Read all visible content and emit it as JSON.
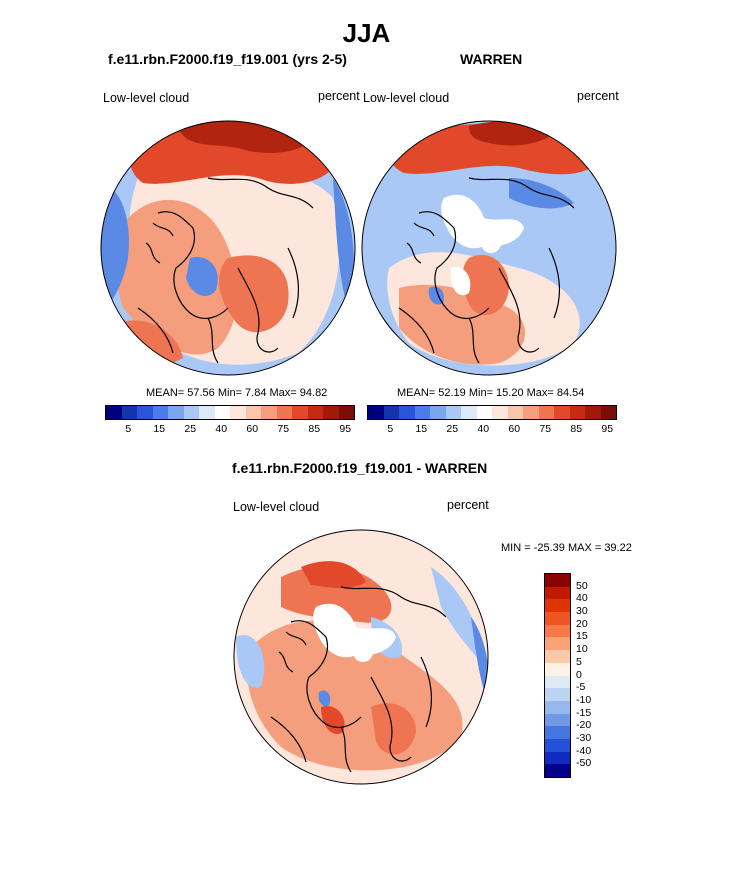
{
  "header": {
    "title": "JJA"
  },
  "panel_left": {
    "case_title": "f.e11.rbn.F2000.f19_f19.001 (yrs 2-5)",
    "variable": "Low-level cloud",
    "units": "percent",
    "stats": "MEAN=  57.56  Min=   7.84  Max=  94.82"
  },
  "panel_right": {
    "case_title": "WARREN",
    "variable": "Low-level cloud",
    "units": "percent",
    "stats": "MEAN=  52.19  Min=  15.20  Max=  84.54"
  },
  "panel_diff": {
    "case_title": "f.e11.rbn.F2000.f19_f19.001 - WARREN",
    "variable": "Low-level cloud",
    "units": "percent",
    "minmax": "MIN = -25.39 MAX =  39.22"
  },
  "colorbar_abs": {
    "colors": [
      "#00007f",
      "#1434ad",
      "#2a56d6",
      "#4a7de8",
      "#7aa5ef",
      "#a9c8f5",
      "#dbe9fa",
      "#ffffff",
      "#fde6dc",
      "#fbc5ab",
      "#f59e7e",
      "#ef7552",
      "#e2492b",
      "#c52a12",
      "#9e1b0a",
      "#7a0e05"
    ],
    "tick_labels": [
      "5",
      "15",
      "25",
      "40",
      "60",
      "75",
      "85",
      "95"
    ],
    "tick_boundaries": [
      1,
      3,
      5,
      7,
      9,
      11,
      13,
      15
    ]
  },
  "colorbar_diff": {
    "colors": [
      "#8b0000",
      "#bf1a00",
      "#dd3400",
      "#ee5522",
      "#f57a45",
      "#f9a275",
      "#fcc9a8",
      "#fff1e6",
      "#dfeaf7",
      "#bcd3f2",
      "#97b8ed",
      "#7099e6",
      "#4577e0",
      "#2550d8",
      "#0e2cc0",
      "#00008b"
    ],
    "tick_labels": [
      "50",
      "40",
      "30",
      "20",
      "15",
      "10",
      "5",
      "0",
      "-5",
      "-10",
      "-15",
      "-20",
      "-30",
      "-40",
      "-50"
    ]
  },
  "map_colors": {
    "ocean_low": "#5a8ae3",
    "ocean_mid": "#a9c8f5",
    "pale": "#fde6dc",
    "salmon": "#f59e7e",
    "orange": "#ef7552",
    "red": "#e2492b",
    "dark_red": "#b02410",
    "white": "#ffffff",
    "coast": "#000000"
  }
}
